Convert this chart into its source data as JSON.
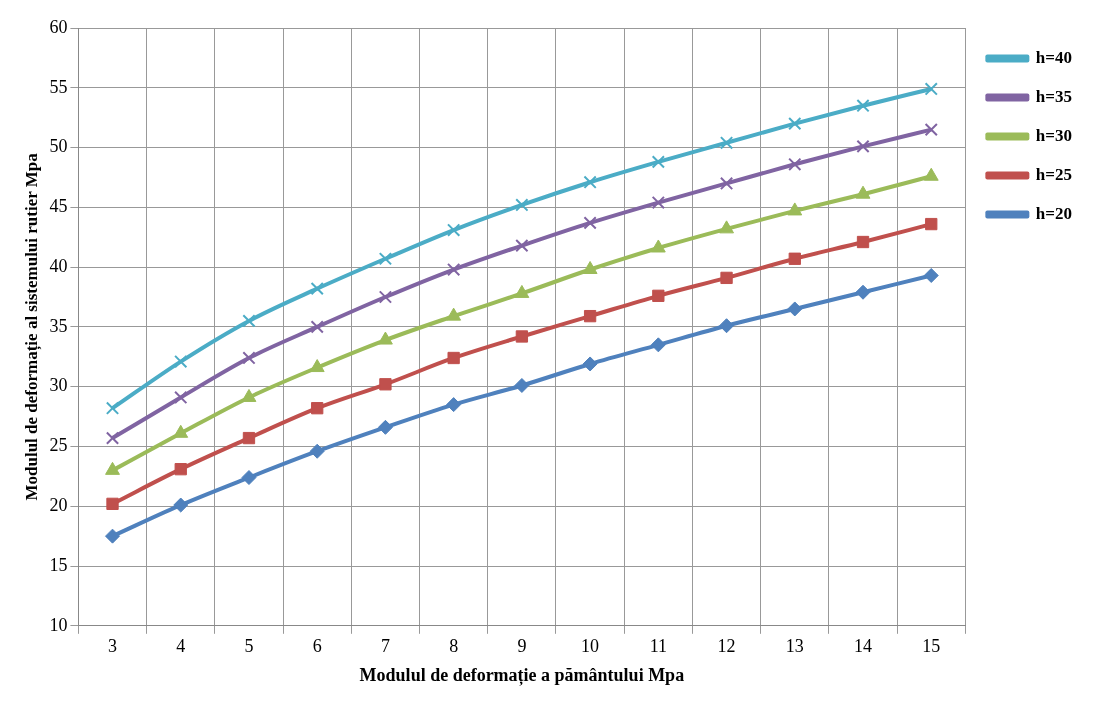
{
  "chart_data": {
    "type": "line",
    "xlabel": "Modulul de deformație a pământului Mpa",
    "ylabel": "Modulul de deformație al sistemului rutier Mpa",
    "categories": [
      "3",
      "4",
      "5",
      "6",
      "7",
      "8",
      "9",
      "10",
      "11",
      "12",
      "13",
      "14",
      "15"
    ],
    "ylim": [
      10,
      60
    ],
    "yticks": [
      10,
      15,
      20,
      25,
      30,
      35,
      40,
      45,
      50,
      55,
      60
    ],
    "grid": true,
    "legend": "right",
    "series": [
      {
        "name": "h=40",
        "color": "#4bacc6",
        "marker": "cross",
        "values": [
          28.2,
          32.1,
          35.5,
          38.2,
          40.7,
          43.1,
          45.2,
          47.1,
          48.8,
          50.4,
          52.0,
          53.5,
          54.9
        ]
      },
      {
        "name": "h=35",
        "color": "#8064a2",
        "marker": "cross",
        "values": [
          25.7,
          29.1,
          32.4,
          35.0,
          37.5,
          39.8,
          41.8,
          43.7,
          45.4,
          47.0,
          48.6,
          50.1,
          51.5
        ]
      },
      {
        "name": "h=30",
        "color": "#9bbb59",
        "marker": "triangle",
        "values": [
          23.0,
          26.1,
          29.1,
          31.6,
          33.9,
          35.9,
          37.8,
          39.8,
          41.6,
          43.2,
          44.7,
          46.1,
          47.6
        ]
      },
      {
        "name": "h=25",
        "color": "#c0504d",
        "marker": "square",
        "values": [
          20.2,
          23.1,
          25.7,
          28.2,
          30.2,
          32.4,
          34.2,
          35.9,
          37.6,
          39.1,
          40.7,
          42.1,
          43.6
        ]
      },
      {
        "name": "h=20",
        "color": "#4f81bd",
        "marker": "diamond",
        "values": [
          17.5,
          20.1,
          22.4,
          24.6,
          26.6,
          28.5,
          30.1,
          31.9,
          33.5,
          35.1,
          36.5,
          37.9,
          39.3
        ]
      }
    ]
  }
}
